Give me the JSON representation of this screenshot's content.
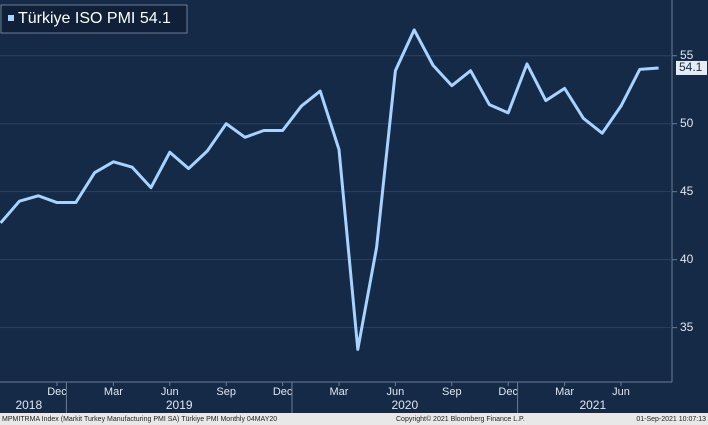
{
  "chart_data": {
    "type": "line",
    "series": [
      {
        "name": "Türkiye ISO PMI",
        "color": "#a8d2ff",
        "values": [
          42.7,
          44.3,
          44.7,
          44.2,
          44.2,
          46.4,
          47.2,
          46.8,
          45.3,
          47.9,
          46.7,
          48.0,
          50.0,
          49.0,
          49.5,
          49.5,
          51.3,
          52.4,
          48.1,
          33.4,
          40.9,
          53.9,
          56.9,
          54.3,
          52.8,
          53.9,
          51.4,
          50.8,
          54.4,
          51.7,
          52.6,
          50.4,
          49.3,
          51.3,
          54.0,
          54.1
        ]
      }
    ],
    "x": [
      "2018-09",
      "2018-10",
      "2018-11",
      "2018-12",
      "2019-01",
      "2019-02",
      "2019-03",
      "2019-04",
      "2019-05",
      "2019-06",
      "2019-07",
      "2019-08",
      "2019-09",
      "2019-10",
      "2019-11",
      "2019-12",
      "2020-01",
      "2020-02",
      "2020-03",
      "2020-04",
      "2020-05",
      "2020-06",
      "2020-07",
      "2020-08",
      "2020-09",
      "2020-10",
      "2020-11",
      "2020-12",
      "2021-01",
      "2021-02",
      "2021-03",
      "2021-04",
      "2021-05",
      "2021-06",
      "2021-07",
      "2021-08"
    ],
    "xticks": [
      {
        "value": "2018-12",
        "label": "Dec"
      },
      {
        "value": "2019-03",
        "label": "Mar"
      },
      {
        "value": "2019-06",
        "label": "Jun"
      },
      {
        "value": "2019-09",
        "label": "Sep"
      },
      {
        "value": "2019-12",
        "label": "Dec"
      },
      {
        "value": "2020-03",
        "label": "Mar"
      },
      {
        "value": "2020-06",
        "label": "Jun"
      },
      {
        "value": "2020-09",
        "label": "Sep"
      },
      {
        "value": "2020-12",
        "label": "Dec"
      },
      {
        "value": "2021-03",
        "label": "Mar"
      },
      {
        "value": "2021-06",
        "label": "Jun"
      }
    ],
    "years": [
      "2018",
      "2019",
      "2020",
      "2021"
    ],
    "ylim": [
      31,
      59.1
    ],
    "yticks": [
      35,
      40,
      45,
      50,
      55
    ],
    "grid": true
  },
  "footer": {
    "source": "MPMITRMA Index (Markit Turkey Manufacturing PMI SA) Türkiye PMI  Monthly 04MAY20",
    "copyright": "Copyright© 2021 Bloomberg Finance L.P.",
    "timestamp": "01-Sep-2021 10:07:13"
  }
}
